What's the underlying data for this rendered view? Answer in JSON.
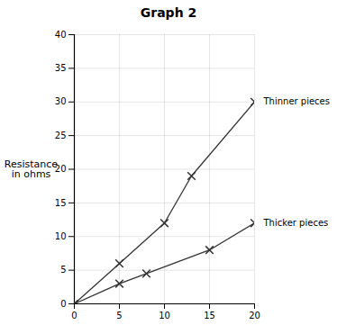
{
  "chart_data": {
    "type": "line",
    "title": "Graph 2",
    "ylabel": "Resistance\nin ohms",
    "xlim": [
      0,
      20
    ],
    "ylim": [
      0,
      40
    ],
    "xticks": [
      0,
      5,
      10,
      15,
      20
    ],
    "yticks": [
      0,
      5,
      10,
      15,
      20,
      25,
      30,
      35,
      40
    ],
    "grid": true,
    "legend": "right",
    "color": "#333333",
    "marker": "x",
    "series": [
      {
        "name": "Thinner pieces",
        "x": [
          0,
          5,
          10,
          13,
          20
        ],
        "values": [
          0,
          6,
          12,
          19,
          30
        ]
      },
      {
        "name": "Thicker pieces",
        "x": [
          0,
          5,
          8,
          15,
          20
        ],
        "values": [
          0,
          3,
          4.5,
          8,
          12
        ]
      }
    ]
  }
}
